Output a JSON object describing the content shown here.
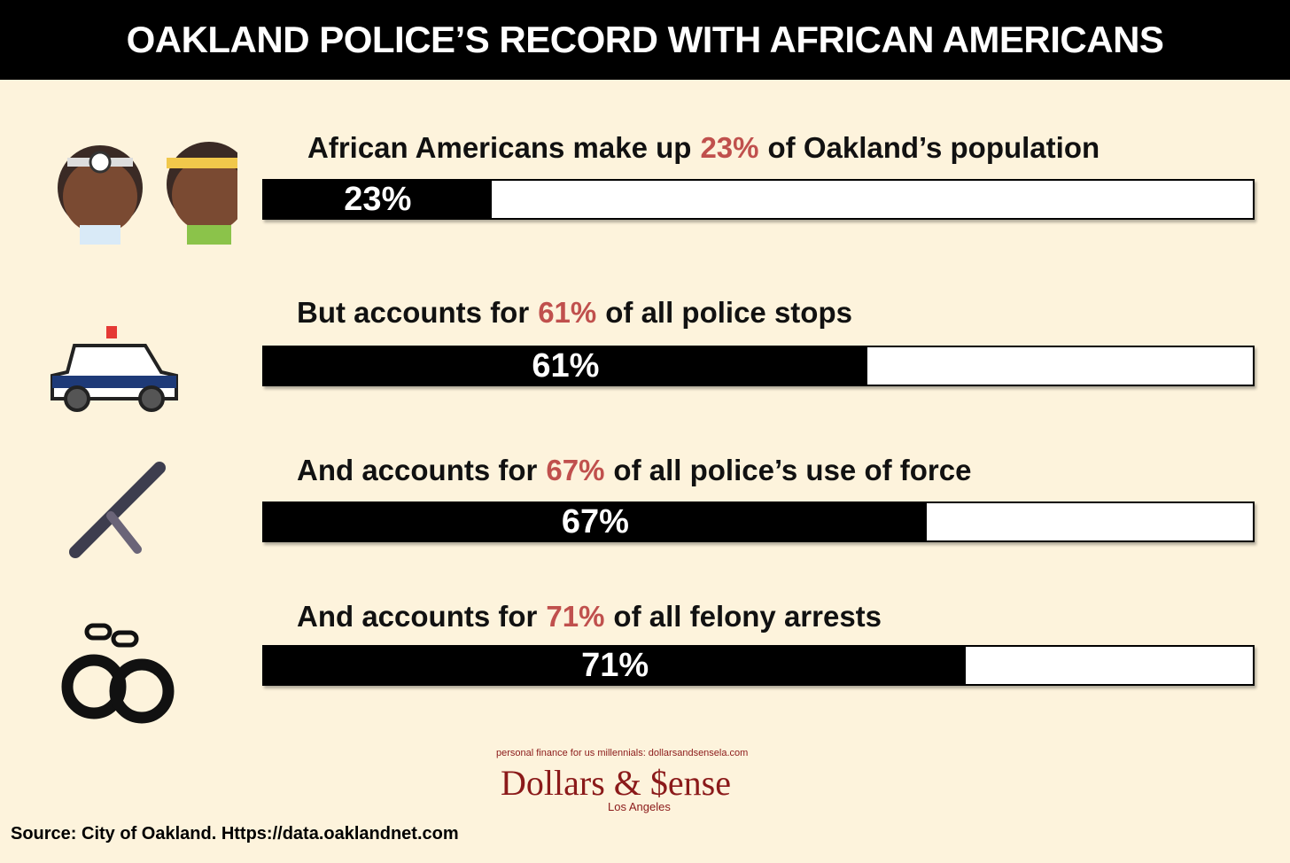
{
  "chart_data": {
    "type": "progress",
    "title": "OAKLAND POLICE’S RECORD WITH AFRICAN AMERICANS",
    "xlim": [
      0,
      100
    ],
    "bar_color": "#000000",
    "highlight_color": "#c0504d",
    "captions": [
      {
        "before": "African Americans make up",
        "after": "of Oakland’s population"
      },
      {
        "before": "But accounts for",
        "after": "of all police stops"
      },
      {
        "before": "And accounts for",
        "after": "of all police’s use of force"
      },
      {
        "before": "And accounts for",
        "after": "of all felony arrests"
      }
    ],
    "values": [
      23,
      61,
      67,
      71
    ],
    "value_labels": [
      "23%",
      "61%",
      "67%",
      "71%"
    ]
  },
  "footer": {
    "tagline": "personal finance for us millennials: dollarsandsensela.com",
    "brand": "Dollars & $ense",
    "city": "Los Angeles",
    "source": "Source: City of Oakland. Https://data.oaklandnet.com"
  }
}
